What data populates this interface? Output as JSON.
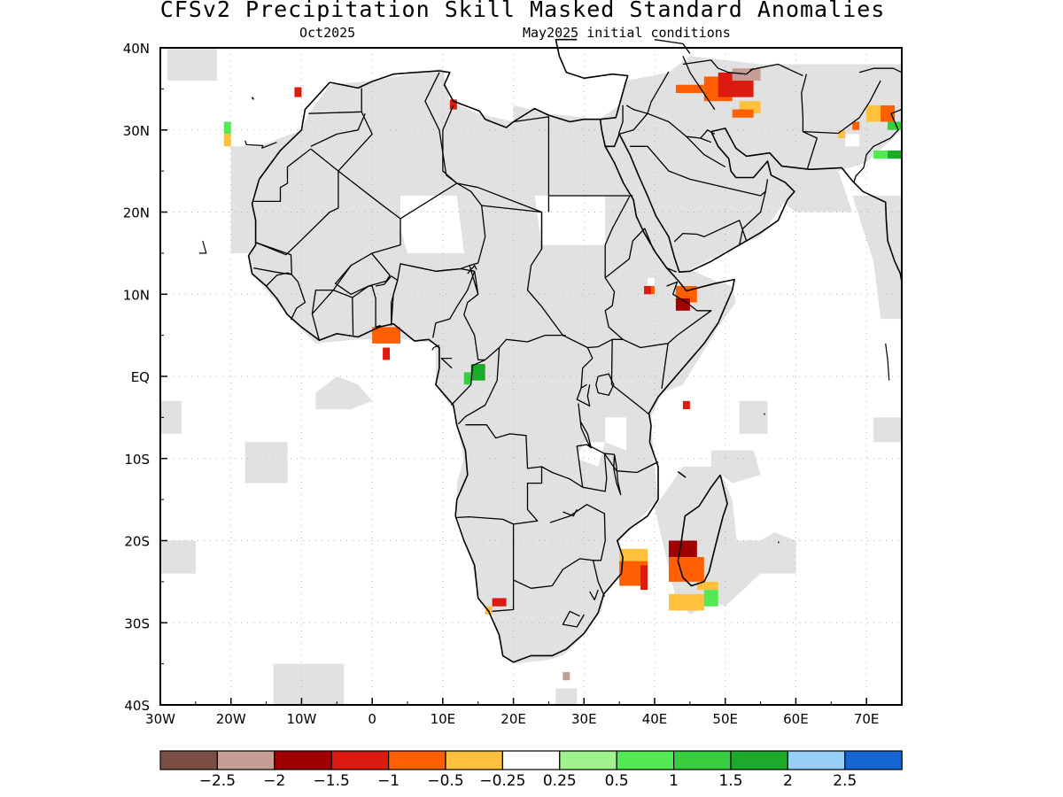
{
  "header": {
    "title": "CFSv2 Precipitation Skill Masked Standard Anomalies",
    "valid_month": "Oct2025",
    "initial_conditions": "May2025 initial conditions"
  },
  "map": {
    "lon_range": [
      -30,
      75
    ],
    "lat_range": [
      -40,
      40
    ],
    "x_ticks": [
      "30W",
      "20W",
      "10W",
      "0",
      "10E",
      "20E",
      "30E",
      "40E",
      "50E",
      "60E",
      "70E"
    ],
    "y_ticks": [
      "40N",
      "30N",
      "20N",
      "10N",
      "EQ",
      "10S",
      "20S",
      "30S",
      "40S"
    ],
    "mask_color": "#e1e1e1",
    "coast_color": "#000000"
  },
  "anomaly_cells": [
    {
      "lon": -11,
      "lat": 34,
      "w": 1,
      "h": 1.2,
      "value": -1.5
    },
    {
      "lon": 11,
      "lat": 32.5,
      "w": 1,
      "h": 1.2,
      "value": -1.5
    },
    {
      "lon": -21,
      "lat": 29.5,
      "w": 1,
      "h": 1.5,
      "value": 0.5
    },
    {
      "lon": -21,
      "lat": 28,
      "w": 1,
      "h": 1.5,
      "value": -0.5
    },
    {
      "lon": 43,
      "lat": 34.5,
      "w": 4,
      "h": 1,
      "value": -1.0
    },
    {
      "lon": 47,
      "lat": 33.5,
      "w": 4,
      "h": 3,
      "value": -1.0
    },
    {
      "lon": 49,
      "lat": 34,
      "w": 5,
      "h": 3,
      "value": -1.5
    },
    {
      "lon": 51,
      "lat": 36,
      "w": 4,
      "h": 1.5,
      "value": -2.5
    },
    {
      "lon": 52,
      "lat": 32,
      "w": 3,
      "h": 1.5,
      "value": -0.5
    },
    {
      "lon": 51,
      "lat": 31.5,
      "w": 3,
      "h": 1,
      "value": -1.0
    },
    {
      "lon": 66,
      "lat": 29,
      "w": 1,
      "h": 1,
      "value": -0.5
    },
    {
      "lon": 67,
      "lat": 28,
      "w": 2,
      "h": 1.5,
      "value": -0.25
    },
    {
      "lon": 68,
      "lat": 30,
      "w": 1,
      "h": 1,
      "value": -1.0
    },
    {
      "lon": 70,
      "lat": 31,
      "w": 2,
      "h": 2,
      "value": -0.5
    },
    {
      "lon": 72,
      "lat": 31,
      "w": 2,
      "h": 2,
      "value": -1.0
    },
    {
      "lon": 73,
      "lat": 30,
      "w": 2,
      "h": 1,
      "value": 1.0
    },
    {
      "lon": 71,
      "lat": 26.5,
      "w": 2,
      "h": 1,
      "value": 0.5
    },
    {
      "lon": 73,
      "lat": 26.5,
      "w": 2,
      "h": 1,
      "value": 1.5
    },
    {
      "lon": 0,
      "lat": 4,
      "w": 4,
      "h": 2,
      "value": -1.0
    },
    {
      "lon": 1.5,
      "lat": 2,
      "w": 1,
      "h": 1.5,
      "value": -1.5
    },
    {
      "lon": 13,
      "lat": -1,
      "w": 1,
      "h": 1.5,
      "value": 1.0
    },
    {
      "lon": 14,
      "lat": -0.5,
      "w": 2,
      "h": 2,
      "value": 1.5
    },
    {
      "lon": 39,
      "lat": 10,
      "w": 1,
      "h": 1,
      "value": -1.0
    },
    {
      "lon": 39,
      "lat": 11,
      "w": 1,
      "h": 1,
      "value": -0.25
    },
    {
      "lon": 38.5,
      "lat": 10,
      "w": 1,
      "h": 1,
      "value": -1.5
    },
    {
      "lon": 43,
      "lat": 9,
      "w": 3,
      "h": 2,
      "value": -1.0
    },
    {
      "lon": 43,
      "lat": 8,
      "w": 2,
      "h": 1.5,
      "value": -2.0
    },
    {
      "lon": 44,
      "lat": -4,
      "w": 1,
      "h": 1,
      "value": -1.5
    },
    {
      "lon": 35,
      "lat": -23,
      "w": 4,
      "h": 2,
      "value": -0.5
    },
    {
      "lon": 35,
      "lat": -25.5,
      "w": 4,
      "h": 3,
      "value": -1.0
    },
    {
      "lon": 38,
      "lat": -26,
      "w": 1,
      "h": 3,
      "value": -1.5
    },
    {
      "lon": 42,
      "lat": -22,
      "w": 4,
      "h": 2,
      "value": -2.0
    },
    {
      "lon": 42,
      "lat": -25,
      "w": 5,
      "h": 3,
      "value": -1.0
    },
    {
      "lon": 42,
      "lat": -28.5,
      "w": 5,
      "h": 2,
      "value": -0.5
    },
    {
      "lon": 46,
      "lat": -26,
      "w": 3,
      "h": 1,
      "value": -0.5
    },
    {
      "lon": 47,
      "lat": -28,
      "w": 2,
      "h": 2,
      "value": 0.5
    },
    {
      "lon": 17,
      "lat": -28,
      "w": 2,
      "h": 1,
      "value": -1.5
    },
    {
      "lon": 16,
      "lat": -29,
      "w": 1,
      "h": 1,
      "value": -0.5
    },
    {
      "lon": 27,
      "lat": -37,
      "w": 1,
      "h": 1,
      "value": -2.5
    }
  ],
  "colorbar": {
    "colors": [
      "#7b4f46",
      "#c79e95",
      "#a00000",
      "#dd1a0f",
      "#ff5f00",
      "#ffc03c",
      "#ffffff",
      "#9ff28c",
      "#52ea52",
      "#36cd3e",
      "#1da929",
      "#98cff8",
      "#1565d4"
    ],
    "labels": [
      "−2.5",
      "−2",
      "−1.5",
      "−1",
      "−0.5",
      "−0.25",
      "0.25",
      "0.5",
      "1",
      "1.5",
      "2",
      "2.5"
    ]
  }
}
